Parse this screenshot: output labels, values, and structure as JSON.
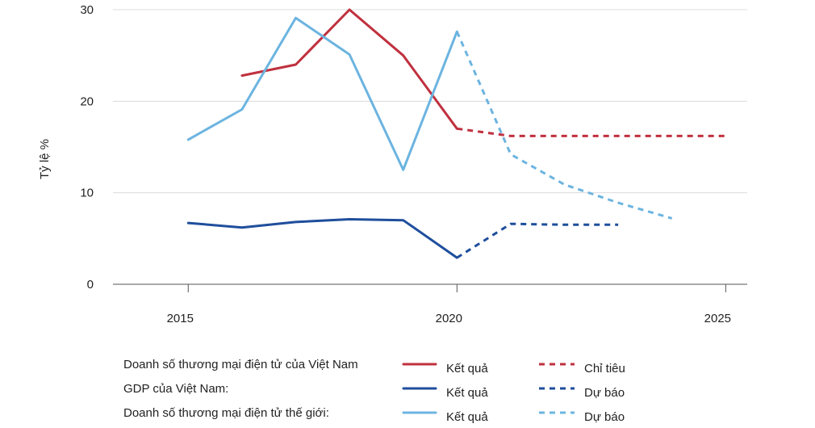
{
  "chart_data": {
    "type": "line",
    "ylabel": "Tỷ lệ %",
    "xlim": [
      2013.6,
      2025.4
    ],
    "ylim": [
      0,
      30
    ],
    "x_ticks": [
      "2015",
      "2020",
      "2025"
    ],
    "y_ticks": [
      "0",
      "10",
      "20",
      "30"
    ],
    "grid": "horizontal",
    "legend": {
      "rows": [
        {
          "label": "Doanh số thương mại điện tử của Việt Nam",
          "solid_text": "Kết quả",
          "dashed_text": "Chỉ tiêu"
        },
        {
          "label": "GDP của Việt Nam:",
          "solid_text": "Kết quả",
          "dashed_text": "Dự báo"
        },
        {
          "label": "Doanh số thương mại điện tử thế giới:",
          "solid_text": "Kết quả",
          "dashed_text": "Dự báo"
        }
      ]
    },
    "series": [
      {
        "key": "vn_ecom_actual",
        "color": "#c0303e",
        "dashed": false,
        "x": [
          2016,
          2017,
          2018,
          2019,
          2020
        ],
        "y": [
          22.8,
          24,
          30,
          25,
          17
        ]
      },
      {
        "key": "vn_ecom_target",
        "color": "#c0303e",
        "dashed": true,
        "x": [
          2020,
          2021,
          2022,
          2023,
          2024,
          2025
        ],
        "y": [
          17,
          16.2,
          16.2,
          16.2,
          16.2,
          16.2
        ]
      },
      {
        "key": "vn_gdp_actual",
        "color": "#1f4e9c",
        "dashed": false,
        "x": [
          2015,
          2016,
          2017,
          2018,
          2019,
          2020
        ],
        "y": [
          6.7,
          6.2,
          6.8,
          7.1,
          7.0,
          2.9
        ]
      },
      {
        "key": "vn_gdp_forecast",
        "color": "#1f4e9c",
        "dashed": true,
        "x": [
          2020,
          2021,
          2022,
          2023
        ],
        "y": [
          2.9,
          6.6,
          6.5,
          6.5
        ]
      },
      {
        "key": "world_ecom_actual",
        "color": "#6cb4e0",
        "dashed": false,
        "x": [
          2015,
          2016,
          2017,
          2018,
          2019,
          2020
        ],
        "y": [
          15.8,
          19.1,
          29.1,
          25.1,
          12.5,
          27.6
        ]
      },
      {
        "key": "world_ecom_forecast",
        "color": "#6cb4e0",
        "dashed": true,
        "x": [
          2020,
          2021,
          2022,
          2023,
          2024
        ],
        "y": [
          27.6,
          14.2,
          10.9,
          8.9,
          7.2
        ]
      }
    ]
  }
}
